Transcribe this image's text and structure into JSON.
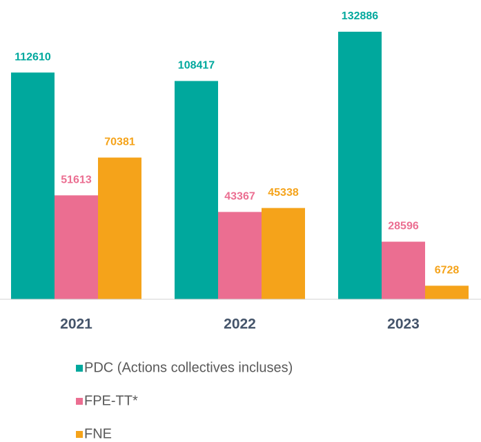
{
  "chart_data": {
    "type": "bar",
    "categories": [
      "2021",
      "2022",
      "2023"
    ],
    "series": [
      {
        "name": "PDC (Actions collectives incluses)",
        "color": "#00a89d",
        "values": [
          112610,
          108417,
          132886
        ]
      },
      {
        "name": "FPE-TT*",
        "color": "#eb6e91",
        "values": [
          51613,
          43367,
          28596
        ]
      },
      {
        "name": "FNE",
        "color": "#f5a31a",
        "values": [
          70381,
          45338,
          6728
        ]
      }
    ]
  }
}
